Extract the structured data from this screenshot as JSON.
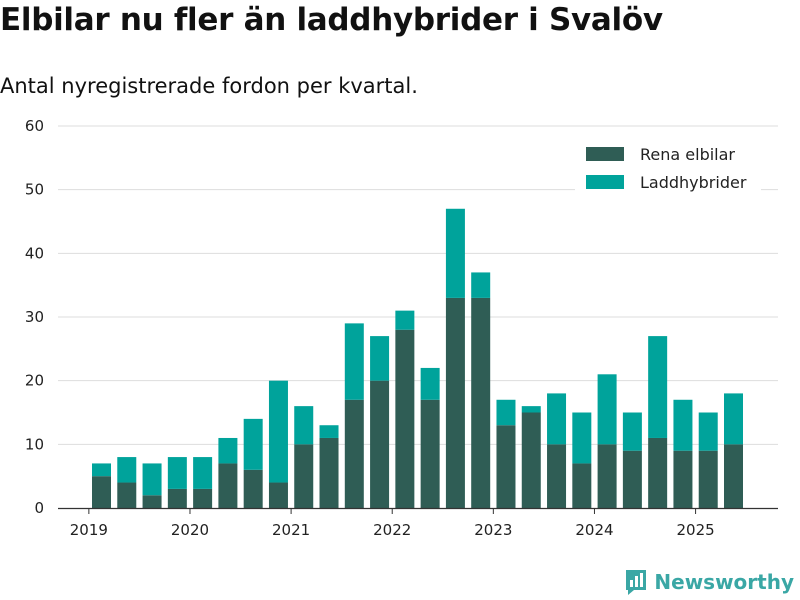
{
  "header": {
    "title": "Elbilar nu fler än laddhybrider i Svalöv",
    "subtitle": "Antal nyregistrerade fordon per kvartal."
  },
  "brand": {
    "name": "Newsworthy",
    "color": "#3aa7a5"
  },
  "colors": {
    "elbilar": "#2f5d55",
    "laddhybrider": "#00a39b",
    "grid": "#dddddd"
  },
  "chart_data": {
    "type": "bar",
    "stacked": true,
    "title": "Elbilar nu fler än laddhybrider i Svalöv",
    "subtitle": "Antal nyregistrerade fordon per kvartal.",
    "xlabel": "",
    "ylabel": "",
    "ylim": [
      0,
      60
    ],
    "yticks": [
      0,
      10,
      20,
      30,
      40,
      50,
      60
    ],
    "legend_position": "top-right",
    "grid": true,
    "year_ticks": [
      {
        "label": "2019",
        "index": -0.5
      },
      {
        "label": "2020",
        "index": 3.5
      },
      {
        "label": "2021",
        "index": 7.5
      },
      {
        "label": "2022",
        "index": 11.5
      },
      {
        "label": "2023",
        "index": 15.5
      },
      {
        "label": "2024",
        "index": 19.5
      },
      {
        "label": "2025",
        "index": 23.5
      }
    ],
    "categories": [
      "2019 Q2",
      "2019 Q3",
      "2019 Q4",
      "2020 Q1",
      "2020 Q2",
      "2020 Q3",
      "2020 Q4",
      "2021 Q1",
      "2021 Q2",
      "2021 Q3",
      "2021 Q4",
      "2022 Q1",
      "2022 Q2",
      "2022 Q3",
      "2022 Q4",
      "2023 Q1",
      "2023 Q2",
      "2023 Q3",
      "2023 Q4",
      "2024 Q1",
      "2024 Q2",
      "2024 Q3",
      "2024 Q4",
      "2025 Q1",
      "2025 Q2",
      "2025 Q3"
    ],
    "series": [
      {
        "name": "Rena elbilar",
        "values": [
          5,
          4,
          2,
          3,
          3,
          7,
          6,
          4,
          10,
          11,
          17,
          20,
          28,
          17,
          33,
          33,
          13,
          15,
          10,
          7,
          10,
          9,
          11,
          9,
          9,
          10
        ]
      },
      {
        "name": "Laddhybrider",
        "values": [
          2,
          4,
          5,
          5,
          5,
          4,
          8,
          16,
          6,
          2,
          12,
          7,
          3,
          5,
          14,
          4,
          4,
          1,
          8,
          8,
          11,
          6,
          16,
          8,
          6,
          8
        ]
      }
    ]
  }
}
